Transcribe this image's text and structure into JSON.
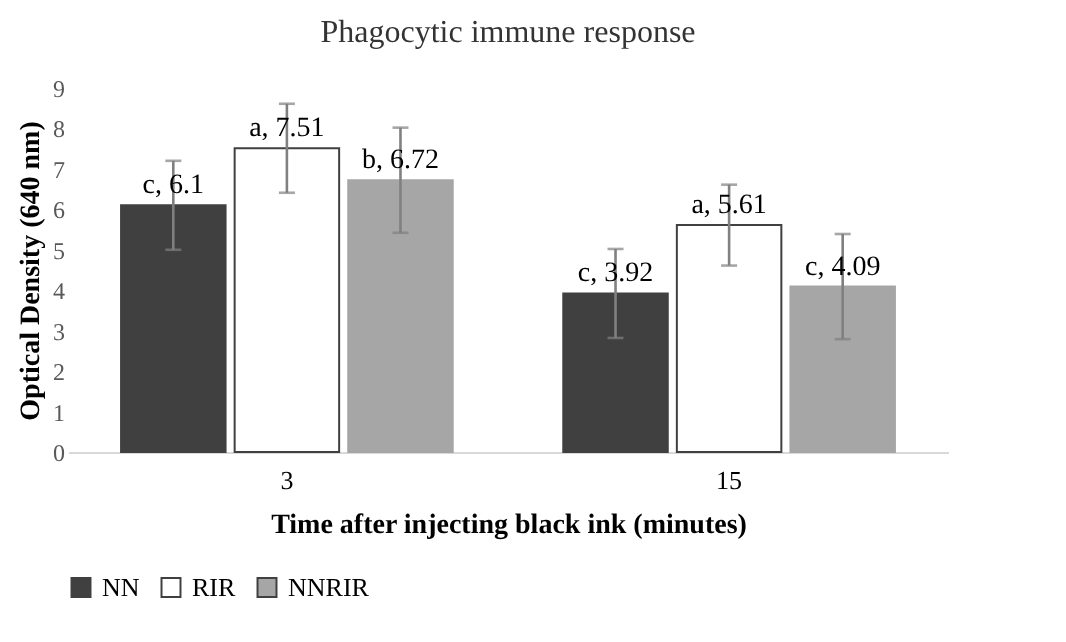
{
  "chart_data": {
    "type": "bar",
    "title": "Phagocytic immune response",
    "xlabel": "Time after injecting black ink (minutes)",
    "ylabel": "Optical Density (640 nm)",
    "categories": [
      "3",
      "15"
    ],
    "series": [
      {
        "name": "NN",
        "color": "#404040",
        "values": [
          6.1,
          3.92
        ],
        "errors": [
          1.1,
          1.1
        ],
        "value_labels": [
          "c, 6.1",
          "c, 3.92"
        ]
      },
      {
        "name": "RIR",
        "color": "#ffffff",
        "values": [
          7.51,
          5.61
        ],
        "errors": [
          1.1,
          1.0
        ],
        "value_labels": [
          "a, 7.51",
          "a, 5.61"
        ]
      },
      {
        "name": "NNRIR",
        "color": "#a6a6a6",
        "values": [
          6.72,
          4.09
        ],
        "errors": [
          1.3,
          1.3
        ],
        "value_labels": [
          "b, 6.72",
          "c, 4.09"
        ]
      }
    ],
    "ylim": [
      0,
      9
    ],
    "yticks": [
      0,
      1,
      2,
      3,
      4,
      5,
      6,
      7,
      8,
      9
    ],
    "grid": false,
    "legend": "bottom"
  }
}
